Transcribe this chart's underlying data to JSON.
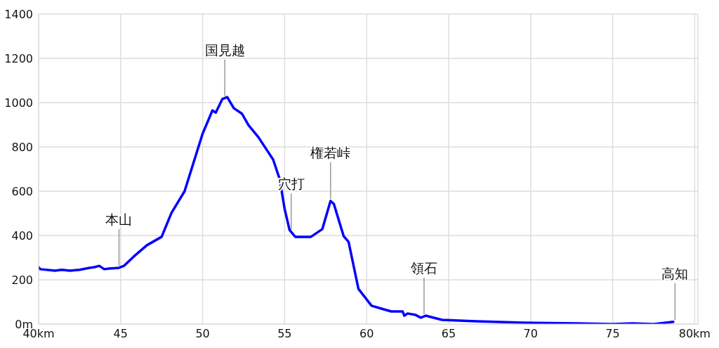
{
  "chart_data": {
    "type": "line",
    "x": [
      40.0,
      40.1,
      41.0,
      41.4,
      41.9,
      42.5,
      43.1,
      43.4,
      43.7,
      44.0,
      44.3,
      44.9,
      45.2,
      45.8,
      46.6,
      47.5,
      48.1,
      48.9,
      50.0,
      50.6,
      50.8,
      51.2,
      51.5,
      51.9,
      52.4,
      52.8,
      53.4,
      54.3,
      54.7,
      55.0,
      55.3,
      55.65,
      56.6,
      57.3,
      57.8,
      58.0,
      58.6,
      58.9,
      59.5,
      59.9,
      60.3,
      60.9,
      61.5,
      62.2,
      62.3,
      62.5,
      63.0,
      63.3,
      63.6,
      64.6,
      66.7,
      69.6,
      72.9,
      75.0,
      76.2,
      77.5,
      78.7
    ],
    "series": [
      {
        "color": "#0000ff",
        "values": [
          257,
          248,
          241,
          245,
          241,
          245,
          254,
          257,
          263,
          248,
          251,
          254,
          263,
          305,
          356,
          394,
          502,
          600,
          860,
          965,
          955,
          1016,
          1025,
          975,
          950,
          898,
          844,
          743,
          654,
          520,
          425,
          394,
          394,
          429,
          556,
          543,
          397,
          371,
          159,
          121,
          83,
          70,
          57,
          57,
          38,
          48,
          41,
          29,
          38,
          19,
          13,
          6,
          3,
          0,
          3,
          0,
          10
        ]
      }
    ],
    "xlim": [
      40,
      80.2
    ],
    "xticks": [
      {
        "value": 40,
        "label": "40km"
      },
      45,
      50,
      55,
      60,
      65,
      70,
      75,
      {
        "value": 80,
        "label": "80km"
      }
    ],
    "ylim": [
      0,
      1400
    ],
    "yticks": [
      {
        "value": 0,
        "label": "0m"
      },
      200,
      400,
      600,
      800,
      1000,
      1200,
      1400
    ],
    "grid": true,
    "legend": false,
    "marker": "none",
    "line_style": "solid",
    "annotations": [
      {
        "text": "本山",
        "x": 44.9,
        "y": 254
      },
      {
        "text": "国見越",
        "x": 51.35,
        "y": 1020
      },
      {
        "text": "穴打",
        "x": 55.4,
        "y": 415
      },
      {
        "text": "権若峠",
        "x": 57.8,
        "y": 556
      },
      {
        "text": "領石",
        "x": 63.5,
        "y": 35
      },
      {
        "text": "高知",
        "x": 78.8,
        "y": 10
      }
    ]
  }
}
